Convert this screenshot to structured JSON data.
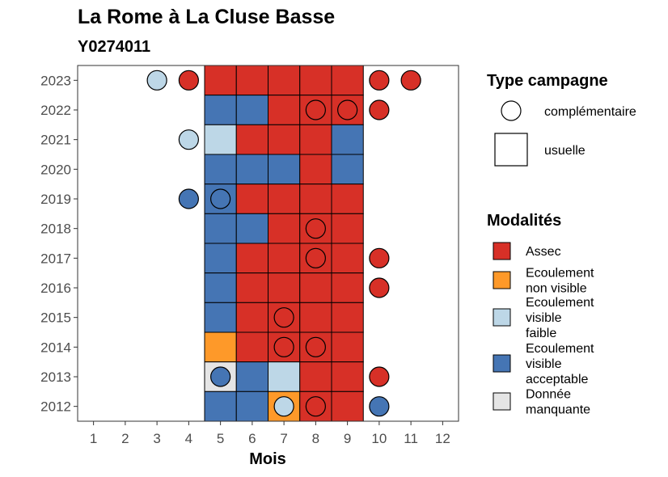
{
  "chart_data": {
    "type": "heatmap",
    "title": "La Rome à La Cluse Basse",
    "subtitle": "Y0274011",
    "xlabel": "Mois",
    "ylabel": "",
    "x_ticks": [
      "1",
      "2",
      "3",
      "4",
      "5",
      "6",
      "7",
      "8",
      "9",
      "10",
      "11",
      "12"
    ],
    "y_ticks": [
      "2012",
      "2013",
      "2014",
      "2015",
      "2016",
      "2017",
      "2018",
      "2019",
      "2020",
      "2021",
      "2022",
      "2023"
    ],
    "xlim": [
      0.5,
      12.5
    ],
    "ylim": [
      2011.5,
      2023.5
    ],
    "colors": {
      "Assec": "#d73027",
      "Ecoulement non visible": "#fe9929",
      "Ecoulement visible faible": "#bdd7e7",
      "Ecoulement visible acceptable": "#4575b4",
      "Donnée manquante": "#e5e5e5"
    },
    "legend_type_title": "Type campagne",
    "legend_type": [
      {
        "shape": "circle",
        "label": "complémentaire"
      },
      {
        "shape": "square",
        "label": "usuelle"
      }
    ],
    "legend_mod_title": "Modalités",
    "legend_mod": [
      {
        "key": "Assec",
        "lines": [
          "Assec"
        ]
      },
      {
        "key": "Ecoulement non visible",
        "lines": [
          "Ecoulement",
          "non visible"
        ]
      },
      {
        "key": "Ecoulement visible faible",
        "lines": [
          "Ecoulement",
          "visible",
          "faible"
        ]
      },
      {
        "key": "Ecoulement visible acceptable",
        "lines": [
          "Ecoulement",
          "visible",
          "acceptable"
        ]
      },
      {
        "key": "Donnée manquante",
        "lines": [
          "Donnée",
          "manquante"
        ]
      }
    ],
    "usuelle": [
      {
        "year": 2023,
        "months": [
          "Assec",
          "Assec",
          "Assec",
          "Assec",
          "Assec"
        ]
      },
      {
        "year": 2022,
        "months": [
          "Ecoulement visible acceptable",
          "Ecoulement visible acceptable",
          "Assec",
          "Assec",
          "Assec"
        ]
      },
      {
        "year": 2021,
        "months": [
          "Ecoulement visible faible",
          "Assec",
          "Assec",
          "Assec",
          "Ecoulement visible acceptable"
        ]
      },
      {
        "year": 2020,
        "months": [
          "Ecoulement visible acceptable",
          "Ecoulement visible acceptable",
          "Ecoulement visible acceptable",
          "Assec",
          "Ecoulement visible acceptable"
        ]
      },
      {
        "year": 2019,
        "months": [
          "Ecoulement visible acceptable",
          "Assec",
          "Assec",
          "Assec",
          "Assec"
        ]
      },
      {
        "year": 2018,
        "months": [
          "Ecoulement visible acceptable",
          "Ecoulement visible acceptable",
          "Assec",
          "Assec",
          "Assec"
        ]
      },
      {
        "year": 2017,
        "months": [
          "Ecoulement visible acceptable",
          "Assec",
          "Assec",
          "Assec",
          "Assec"
        ]
      },
      {
        "year": 2016,
        "months": [
          "Ecoulement visible acceptable",
          "Assec",
          "Assec",
          "Assec",
          "Assec"
        ]
      },
      {
        "year": 2015,
        "months": [
          "Ecoulement visible acceptable",
          "Assec",
          "Assec",
          "Assec",
          "Assec"
        ]
      },
      {
        "year": 2014,
        "months": [
          "Ecoulement non visible",
          "Assec",
          "Assec",
          "Assec",
          "Assec"
        ]
      },
      {
        "year": 2013,
        "months": [
          "Donnée manquante",
          "Ecoulement visible acceptable",
          "Ecoulement visible faible",
          "Assec",
          "Assec"
        ]
      },
      {
        "year": 2012,
        "months": [
          "Ecoulement visible acceptable",
          "Ecoulement visible acceptable",
          "Ecoulement non visible",
          "Assec",
          "Assec"
        ]
      }
    ],
    "usuelle_first_month": 5,
    "complementaire": [
      {
        "year": 2023,
        "month": 3,
        "value": "Ecoulement visible faible"
      },
      {
        "year": 2023,
        "month": 4,
        "value": "Assec"
      },
      {
        "year": 2023,
        "month": 10,
        "value": "Assec"
      },
      {
        "year": 2023,
        "month": 11,
        "value": "Assec"
      },
      {
        "year": 2022,
        "month": 8,
        "value": "Assec"
      },
      {
        "year": 2022,
        "month": 9,
        "value": "Assec"
      },
      {
        "year": 2022,
        "month": 10,
        "value": "Assec"
      },
      {
        "year": 2021,
        "month": 4,
        "value": "Ecoulement visible faible"
      },
      {
        "year": 2019,
        "month": 4,
        "value": "Ecoulement visible acceptable"
      },
      {
        "year": 2019,
        "month": 5,
        "value": "Ecoulement visible acceptable"
      },
      {
        "year": 2018,
        "month": 8,
        "value": "Assec"
      },
      {
        "year": 2017,
        "month": 8,
        "value": "Assec"
      },
      {
        "year": 2017,
        "month": 10,
        "value": "Assec"
      },
      {
        "year": 2016,
        "month": 10,
        "value": "Assec"
      },
      {
        "year": 2015,
        "month": 7,
        "value": "Assec"
      },
      {
        "year": 2014,
        "month": 7,
        "value": "Assec"
      },
      {
        "year": 2014,
        "month": 8,
        "value": "Assec"
      },
      {
        "year": 2013,
        "month": 5,
        "value": "Ecoulement visible acceptable"
      },
      {
        "year": 2013,
        "month": 10,
        "value": "Assec"
      },
      {
        "year": 2012,
        "month": 7,
        "value": "Ecoulement visible faible"
      },
      {
        "year": 2012,
        "month": 8,
        "value": "Assec"
      },
      {
        "year": 2012,
        "month": 10,
        "value": "Ecoulement visible acceptable"
      }
    ]
  }
}
